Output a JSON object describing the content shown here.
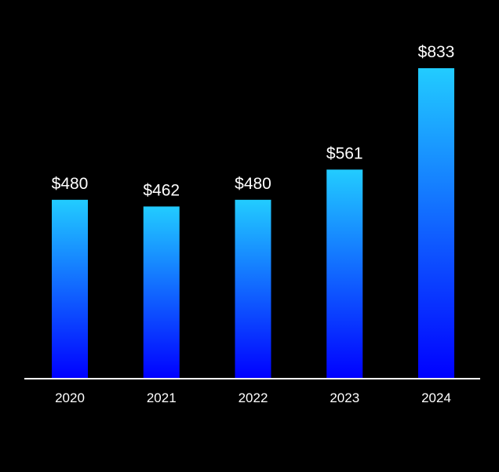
{
  "chart_data": {
    "type": "bar",
    "categories": [
      "2020",
      "2021",
      "2022",
      "2023",
      "2024"
    ],
    "values": [
      480,
      462,
      480,
      561,
      833
    ],
    "data_labels": [
      "$480",
      "$462",
      "$480",
      "$561",
      "$833"
    ],
    "title": "",
    "xlabel": "",
    "ylabel": "",
    "ylim": [
      0,
      833
    ],
    "grid": false,
    "legend": "none"
  },
  "colors": {
    "background": "#000000",
    "bar_top": "#22ccff",
    "bar_bottom": "#0000ff",
    "axis_line": "#ffffff",
    "text": "#ffffff"
  }
}
